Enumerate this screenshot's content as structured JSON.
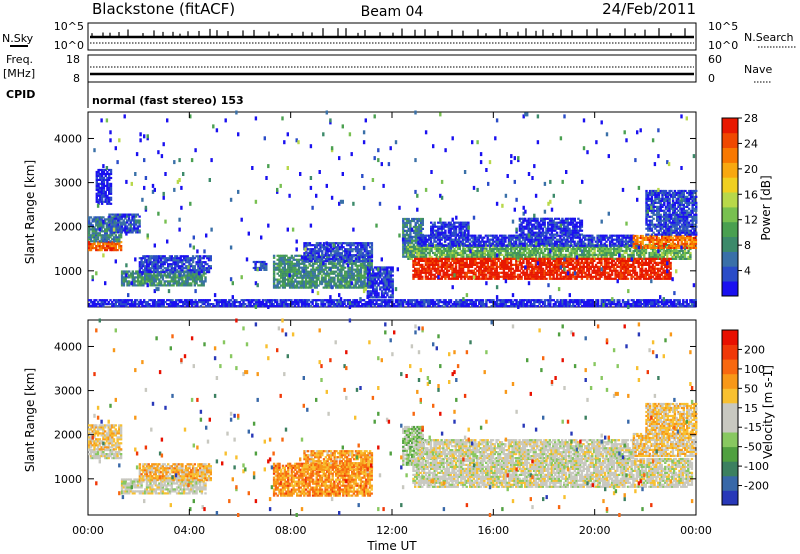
{
  "header": {
    "station": "Blackstone (fitACF)",
    "beam": "Beam 04",
    "date": "24/Feb/2011"
  },
  "top_panels": {
    "nsky_label": "N.Sky",
    "nsky_ticks": [
      "10^5",
      "10^0"
    ],
    "nsearch_label": "N.Search",
    "nsearch_ticks": [
      "10^5",
      "10^0"
    ],
    "freq_label": "Freq.",
    "freq_unit": "[MHz]",
    "freq_ticks": [
      "18",
      "8"
    ],
    "nave_label": "Nave",
    "nave_ticks": [
      "60",
      "0"
    ],
    "cpid_label": "CPID",
    "cpid_text": "normal (fast stereo) 153"
  },
  "chart_data": [
    {
      "type": "heatmap",
      "parameter": "Power",
      "ylabel": "Slant Range [km]",
      "xlabel": "Time UT",
      "x_ticks": [
        "00:00",
        "04:00",
        "08:00",
        "12:00",
        "16:00",
        "20:00",
        "00:00"
      ],
      "y_ticks": [
        1000,
        2000,
        3000,
        4000
      ],
      "xlim_hours": [
        0,
        24
      ],
      "ylim_km": [
        180,
        4600
      ],
      "colorbar": {
        "label": "Power [dB]",
        "ticks": [
          4,
          8,
          12,
          16,
          20,
          24,
          28
        ],
        "colors": [
          "#1a10f0",
          "#2a4cc8",
          "#3a70a8",
          "#3c8a6a",
          "#4aa050",
          "#78c050",
          "#b8d84a",
          "#f0d020",
          "#f8a810",
          "#f87800",
          "#f04800",
          "#e81800"
        ]
      },
      "regions": [
        {
          "t0": 0.0,
          "t1": 1.3,
          "r0": 1450,
          "r1": 1650,
          "level": 0.85
        },
        {
          "t0": 0.0,
          "t1": 1.3,
          "r0": 1650,
          "r1": 2200,
          "level": 0.25
        },
        {
          "t0": 0.8,
          "t1": 2.0,
          "r0": 1850,
          "r1": 2300,
          "level": 0.15
        },
        {
          "t0": 0.3,
          "t1": 0.9,
          "r0": 2500,
          "r1": 3300,
          "level": 0.05
        },
        {
          "t0": 1.3,
          "t1": 4.6,
          "r0": 650,
          "r1": 1000,
          "level": 0.3
        },
        {
          "t0": 2.0,
          "t1": 4.8,
          "r0": 950,
          "r1": 1350,
          "level": 0.1
        },
        {
          "t0": 6.5,
          "t1": 7.0,
          "r0": 1000,
          "r1": 1200,
          "level": 0.1
        },
        {
          "t0": 7.3,
          "t1": 11.2,
          "r0": 600,
          "r1": 1350,
          "level": 0.3
        },
        {
          "t0": 8.5,
          "t1": 11.2,
          "r0": 1200,
          "r1": 1650,
          "level": 0.12
        },
        {
          "t0": 11.0,
          "t1": 12.0,
          "r0": 380,
          "r1": 1100,
          "level": 0.08
        },
        {
          "t0": 12.4,
          "t1": 13.2,
          "r0": 1300,
          "r1": 2200,
          "level": 0.25
        },
        {
          "t0": 12.6,
          "t1": 23.8,
          "r0": 1250,
          "r1": 1600,
          "level": 0.4
        },
        {
          "t0": 12.8,
          "t1": 23.0,
          "r0": 800,
          "r1": 1280,
          "level": 0.98
        },
        {
          "t0": 13.0,
          "t1": 21.5,
          "r0": 1550,
          "r1": 1800,
          "level": 0.08
        },
        {
          "t0": 13.5,
          "t1": 15.0,
          "r0": 1800,
          "r1": 2100,
          "level": 0.06
        },
        {
          "t0": 17.0,
          "t1": 19.5,
          "r0": 1800,
          "r1": 2200,
          "level": 0.06
        },
        {
          "t0": 21.5,
          "t1": 24.0,
          "r0": 1500,
          "r1": 1800,
          "level": 0.82
        },
        {
          "t0": 22.0,
          "t1": 24.0,
          "r0": 1800,
          "r1": 2800,
          "level": 0.12
        },
        {
          "t0": 0.0,
          "t1": 24.0,
          "r0": 180,
          "r1": 350,
          "level": 0.05
        },
        {
          "t0": 0.0,
          "t1": 24.0,
          "r0": 180,
          "r1": 4600,
          "level": 0.05,
          "sparse": true
        }
      ]
    },
    {
      "type": "heatmap",
      "parameter": "Velocity",
      "ylabel": "Slant Range [km]",
      "xlabel": "Time UT",
      "x_ticks": [
        "00:00",
        "04:00",
        "08:00",
        "12:00",
        "16:00",
        "20:00",
        "00:00"
      ],
      "y_ticks": [
        1000,
        2000,
        3000,
        4000
      ],
      "xlim_hours": [
        0,
        24
      ],
      "ylim_km": [
        180,
        4600
      ],
      "colorbar": {
        "label": "Velocity [m s-1]",
        "ticks": [
          200,
          100,
          50,
          15,
          -15,
          -50,
          -100,
          -200
        ],
        "colors": [
          "#2838b8",
          "#3868a8",
          "#3c8060",
          "#50a040",
          "#88c860",
          "#c8c8c0",
          "#c8c8c0",
          "#f8c030",
          "#f89818",
          "#f86810",
          "#f03808",
          "#e81000"
        ]
      },
      "regions": [
        {
          "t0": 0.0,
          "t1": 1.3,
          "r0": 1450,
          "r1": 1650,
          "level": 0.5
        },
        {
          "t0": 0.0,
          "t1": 1.3,
          "r0": 1650,
          "r1": 2200,
          "level": 0.6
        },
        {
          "t0": 1.3,
          "t1": 4.6,
          "r0": 650,
          "r1": 1000,
          "level": 0.5
        },
        {
          "t0": 2.0,
          "t1": 4.8,
          "r0": 950,
          "r1": 1350,
          "level": 0.65
        },
        {
          "t0": 7.3,
          "t1": 11.2,
          "r0": 600,
          "r1": 1350,
          "level": 0.72
        },
        {
          "t0": 8.5,
          "t1": 11.2,
          "r0": 1200,
          "r1": 1650,
          "level": 0.7
        },
        {
          "t0": 12.4,
          "t1": 13.2,
          "r0": 1300,
          "r1": 2200,
          "level": 0.4
        },
        {
          "t0": 12.8,
          "t1": 23.8,
          "r0": 800,
          "r1": 1450,
          "level": 0.5
        },
        {
          "t0": 13.0,
          "t1": 21.5,
          "r0": 1450,
          "r1": 1900,
          "level": 0.5
        },
        {
          "t0": 21.5,
          "t1": 24.0,
          "r0": 1500,
          "r1": 2000,
          "level": 0.6
        },
        {
          "t0": 22.0,
          "t1": 24.0,
          "r0": 2000,
          "r1": 2700,
          "level": 0.62
        },
        {
          "t0": 0.0,
          "t1": 24.0,
          "r0": 180,
          "r1": 4600,
          "level": 0.5,
          "sparse": true
        }
      ]
    }
  ]
}
